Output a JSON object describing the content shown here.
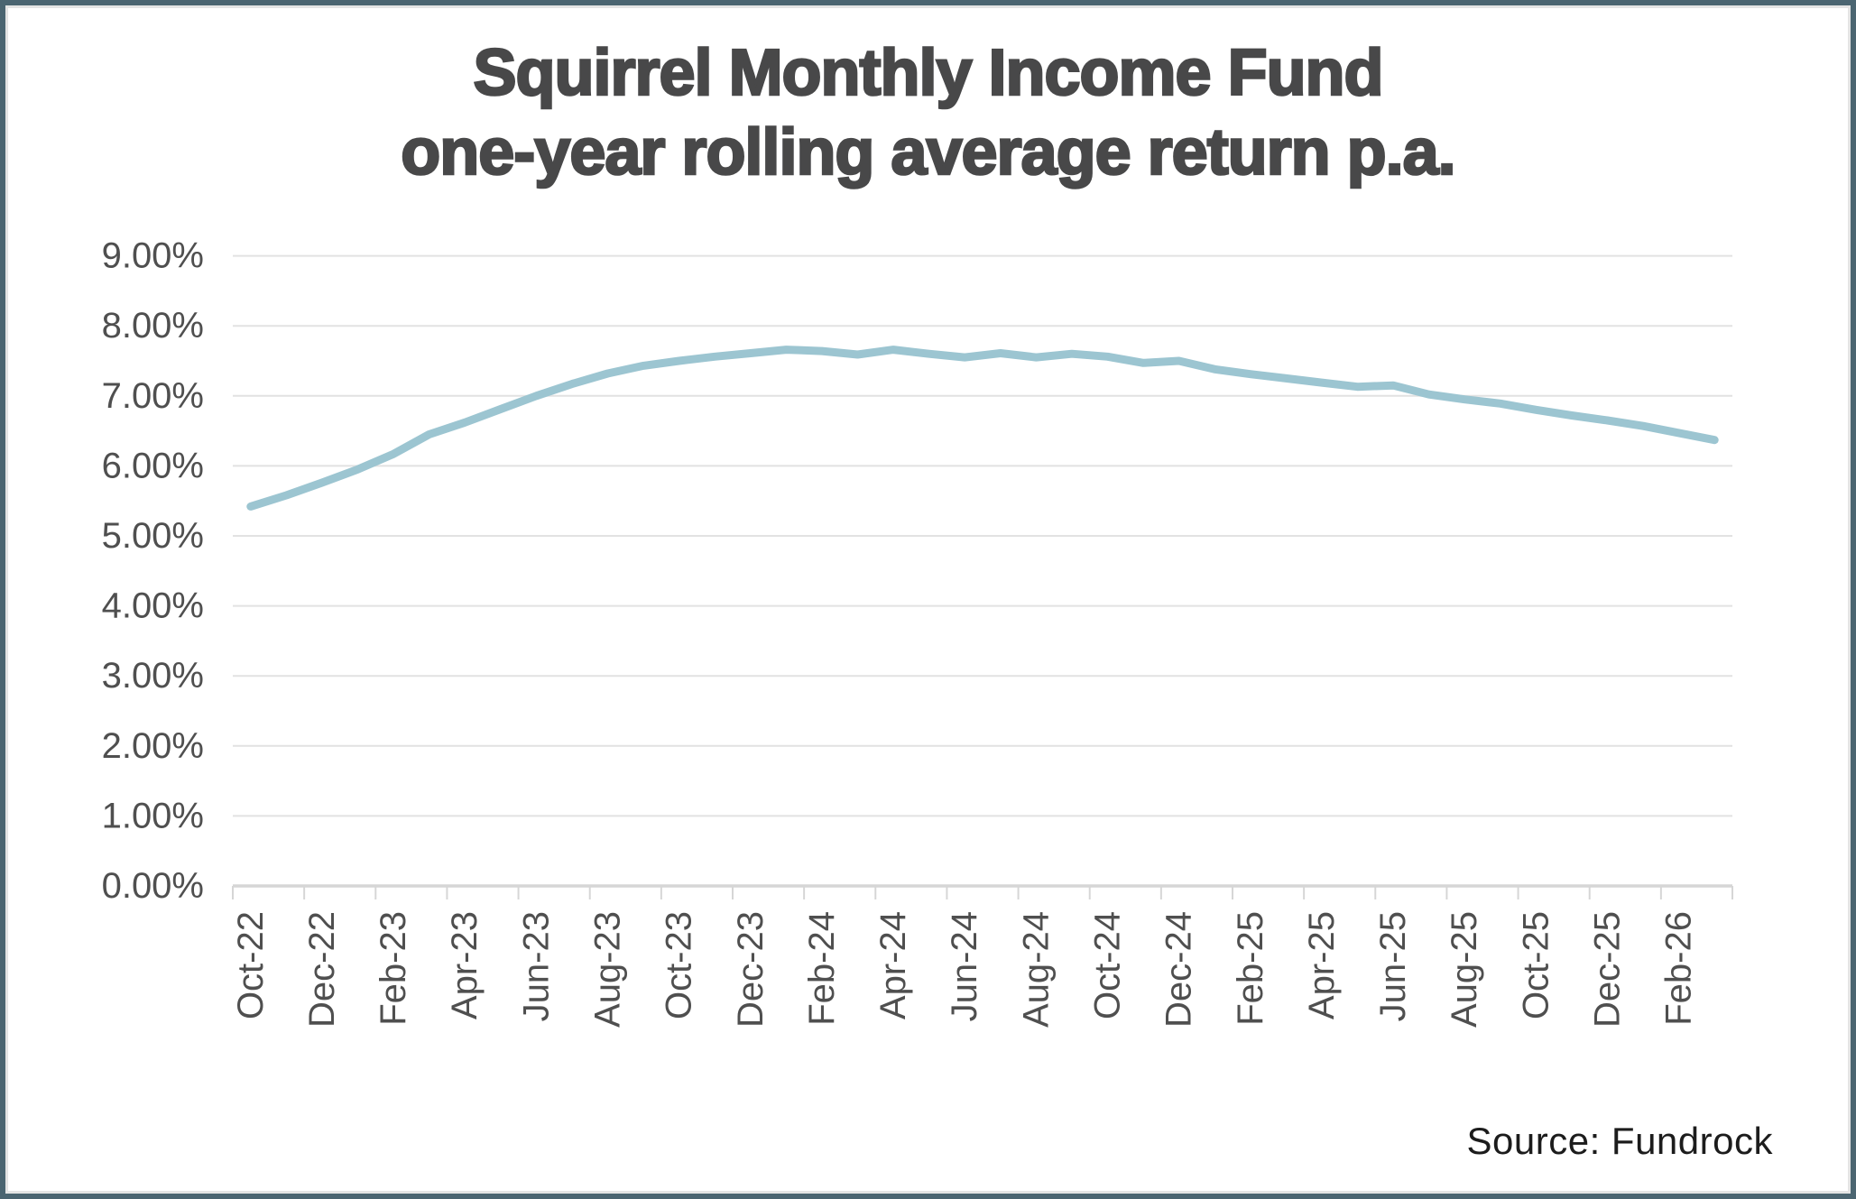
{
  "page": {
    "border_color": "#4b6571",
    "background_color": "#ffffff",
    "title_color": "#484849",
    "axis_text_color": "#4f4f4f",
    "grid_color": "#e2e2e2",
    "axis_line_color": "#d6d6d6"
  },
  "chart_data": {
    "type": "line",
    "title_lines": [
      "Squirrel Monthly Income Fund",
      "one-year rolling average return p.a."
    ],
    "source": "Source: Fundrock",
    "legend": "none",
    "grid": "horizontal",
    "ylim": [
      0,
      9
    ],
    "y_tick_labels": [
      "9.00%",
      "8.00%",
      "7.00%",
      "6.00%",
      "5.00%",
      "4.00%",
      "3.00%",
      "2.00%",
      "1.00%",
      "0.00%"
    ],
    "y_tick_values": [
      9,
      8,
      7,
      6,
      5,
      4,
      3,
      2,
      1,
      0
    ],
    "x_tick_labels": [
      "Oct-22",
      "Dec-22",
      "Feb-23",
      "Apr-23",
      "Jun-23",
      "Aug-23",
      "Oct-23",
      "Dec-23",
      "Feb-24",
      "Apr-24",
      "Jun-24",
      "Aug-24",
      "Oct-24",
      "Dec-24",
      "Feb-25",
      "Apr-25",
      "Jun-25",
      "Aug-25",
      "Oct-25",
      "Dec-25",
      "Feb-26"
    ],
    "x": [
      "Oct-22",
      "Nov-22",
      "Dec-22",
      "Jan-23",
      "Feb-23",
      "Mar-23",
      "Apr-23",
      "May-23",
      "Jun-23",
      "Jul-23",
      "Aug-23",
      "Sep-23",
      "Oct-23",
      "Nov-23",
      "Dec-23",
      "Jan-24",
      "Feb-24",
      "Mar-24",
      "Apr-24",
      "May-24",
      "Jun-24",
      "Jul-24",
      "Aug-24",
      "Sep-24",
      "Oct-24",
      "Nov-24",
      "Dec-24",
      "Jan-25",
      "Feb-25",
      "Mar-25",
      "Apr-25",
      "May-25",
      "Jun-25",
      "Jul-25",
      "Aug-25",
      "Sep-25",
      "Oct-25",
      "Nov-25",
      "Dec-25",
      "Jan-26",
      "Feb-26",
      "Mar-26"
    ],
    "series": [
      {
        "name": "one-year rolling average return p.a.",
        "color": "#9cc5d1",
        "values": [
          5.42,
          5.58,
          5.76,
          5.95,
          6.17,
          6.45,
          6.62,
          6.81,
          7.0,
          7.17,
          7.32,
          7.43,
          7.5,
          7.56,
          7.61,
          7.66,
          7.64,
          7.59,
          7.66,
          7.6,
          7.55,
          7.61,
          7.55,
          7.6,
          7.56,
          7.47,
          7.5,
          7.38,
          7.31,
          7.25,
          7.19,
          7.13,
          7.15,
          7.02,
          6.95,
          6.89,
          6.8,
          6.72,
          6.65,
          6.57,
          6.47,
          6.37
        ]
      }
    ]
  }
}
